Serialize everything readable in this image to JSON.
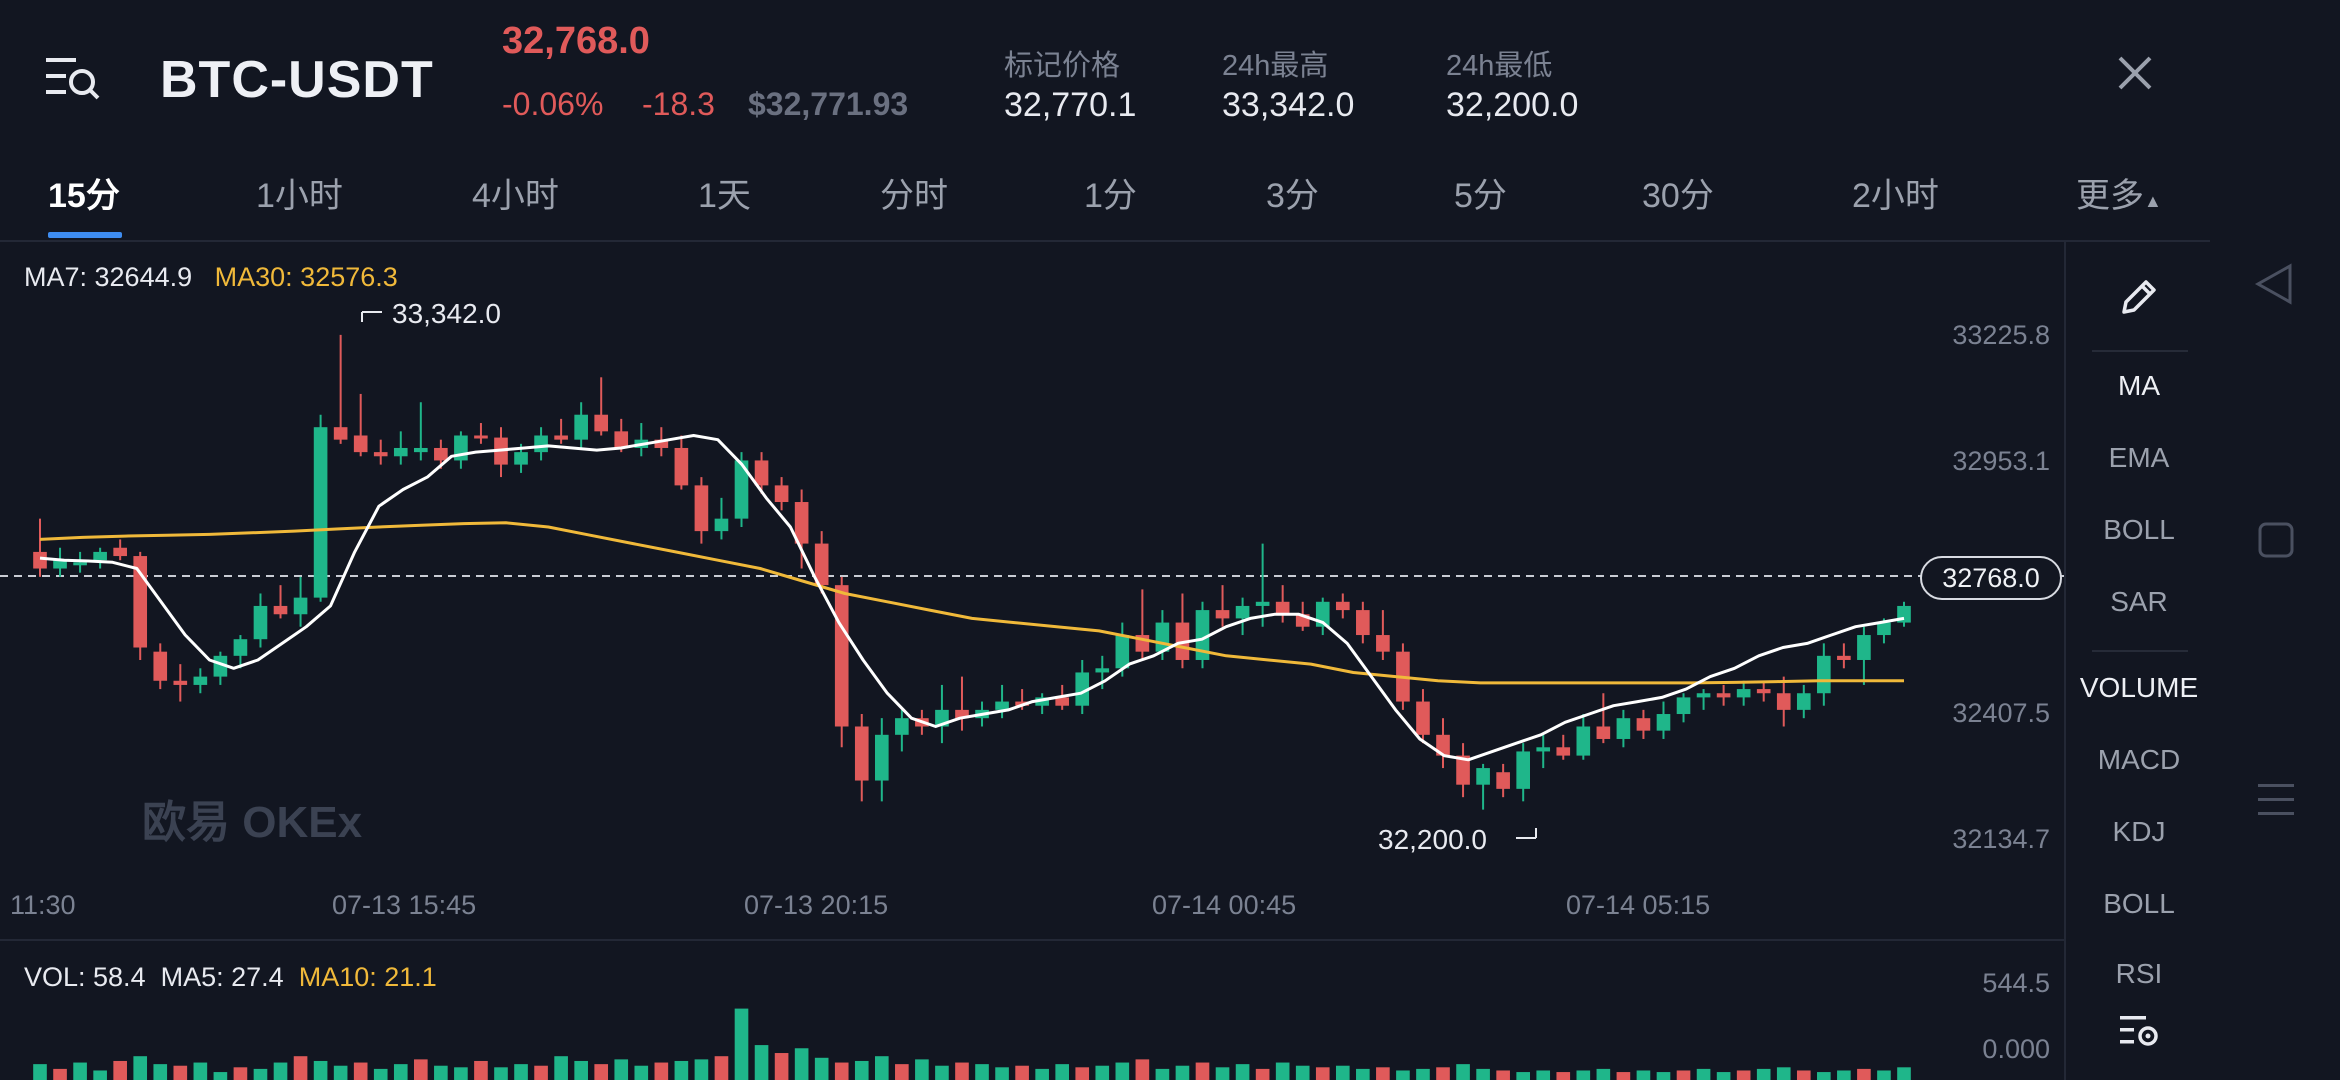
{
  "header": {
    "pair": "BTC-USDT",
    "last_price": "32,768.0",
    "change_pct": "-0.06%",
    "change_abs": "-18.3",
    "fiat_price": "$32,771.93",
    "stats": [
      {
        "label": "标记价格",
        "value": "32,770.1"
      },
      {
        "label": "24h最高",
        "value": "33,342.0"
      },
      {
        "label": "24h最低",
        "value": "32,200.0"
      }
    ]
  },
  "tabs": [
    "15分",
    "1小时",
    "4小时",
    "1天",
    "分时",
    "1分",
    "3分",
    "5分",
    "30分",
    "2小时",
    "更多"
  ],
  "active_tab": "15分",
  "ma_legend": {
    "ma7": "MA7: 32644.9",
    "ma30": "MA30: 32576.3"
  },
  "vol_legend": {
    "vol": "VOL: 58.4",
    "ma5": "MA5: 27.4",
    "ma10": "MA10: 21.1"
  },
  "watermark": "欧易 OKEx",
  "price_axis": [
    "33225.8",
    "32953.1",
    "32407.5",
    "32134.7"
  ],
  "time_axis": [
    "11:30",
    "07-13 15:45",
    "07-13 20:15",
    "07-14 00:45",
    "07-14 05:15"
  ],
  "high_marker": "33,342.0",
  "low_marker": "32,200.0",
  "current_price_badge": "32768.0",
  "vol_axis": [
    "544.5",
    "0.000"
  ],
  "indicators": [
    "MA",
    "EMA",
    "BOLL",
    "SAR",
    "VOLUME",
    "MACD",
    "KDJ",
    "BOLL",
    "RSI"
  ],
  "colors": {
    "up": "#1fb68a",
    "down": "#e05a5a",
    "ma_fast": "#ffffff",
    "ma_slow": "#f0b93a",
    "accent": "#3e8cf0",
    "background": "#121621"
  },
  "icons": [
    "menu-search-icon",
    "close-icon",
    "pencil-icon",
    "indicator-settings-icon",
    "back-triangle-icon",
    "home-square-icon",
    "menu-lines-icon"
  ],
  "chart_data": {
    "type": "candlestick",
    "ylim": [
      32050,
      33450
    ],
    "candles": [
      {
        "o": 32820,
        "h": 32900,
        "l": 32760,
        "c": 32780
      },
      {
        "o": 32780,
        "h": 32830,
        "l": 32760,
        "c": 32800
      },
      {
        "o": 32790,
        "h": 32820,
        "l": 32770,
        "c": 32795
      },
      {
        "o": 32800,
        "h": 32830,
        "l": 32780,
        "c": 32820
      },
      {
        "o": 32830,
        "h": 32850,
        "l": 32800,
        "c": 32810
      },
      {
        "o": 32810,
        "h": 32820,
        "l": 32560,
        "c": 32590
      },
      {
        "o": 32580,
        "h": 32600,
        "l": 32490,
        "c": 32510
      },
      {
        "o": 32510,
        "h": 32550,
        "l": 32460,
        "c": 32500
      },
      {
        "o": 32500,
        "h": 32540,
        "l": 32480,
        "c": 32520
      },
      {
        "o": 32520,
        "h": 32580,
        "l": 32500,
        "c": 32570
      },
      {
        "o": 32570,
        "h": 32620,
        "l": 32540,
        "c": 32610
      },
      {
        "o": 32610,
        "h": 32720,
        "l": 32590,
        "c": 32690
      },
      {
        "o": 32690,
        "h": 32740,
        "l": 32660,
        "c": 32670
      },
      {
        "o": 32670,
        "h": 32760,
        "l": 32640,
        "c": 32710
      },
      {
        "o": 32710,
        "h": 33150,
        "l": 32700,
        "c": 33120
      },
      {
        "o": 33120,
        "h": 33342,
        "l": 33080,
        "c": 33090
      },
      {
        "o": 33100,
        "h": 33200,
        "l": 33050,
        "c": 33060
      },
      {
        "o": 33060,
        "h": 33090,
        "l": 33030,
        "c": 33050
      },
      {
        "o": 33050,
        "h": 33110,
        "l": 33030,
        "c": 33070
      },
      {
        "o": 33060,
        "h": 33180,
        "l": 33040,
        "c": 33070
      },
      {
        "o": 33070,
        "h": 33090,
        "l": 33020,
        "c": 33040
      },
      {
        "o": 33040,
        "h": 33110,
        "l": 33020,
        "c": 33100
      },
      {
        "o": 33100,
        "h": 33130,
        "l": 33080,
        "c": 33095
      },
      {
        "o": 33095,
        "h": 33120,
        "l": 33000,
        "c": 33030
      },
      {
        "o": 33030,
        "h": 33080,
        "l": 33010,
        "c": 33060
      },
      {
        "o": 33060,
        "h": 33120,
        "l": 33040,
        "c": 33100
      },
      {
        "o": 33100,
        "h": 33140,
        "l": 33080,
        "c": 33090
      },
      {
        "o": 33090,
        "h": 33180,
        "l": 33070,
        "c": 33150
      },
      {
        "o": 33150,
        "h": 33240,
        "l": 33100,
        "c": 33110
      },
      {
        "o": 33110,
        "h": 33140,
        "l": 33060,
        "c": 33070
      },
      {
        "o": 33070,
        "h": 33130,
        "l": 33050,
        "c": 33090
      },
      {
        "o": 33090,
        "h": 33120,
        "l": 33050,
        "c": 33070
      },
      {
        "o": 33070,
        "h": 33100,
        "l": 32970,
        "c": 32980
      },
      {
        "o": 32980,
        "h": 33000,
        "l": 32840,
        "c": 32870
      },
      {
        "o": 32870,
        "h": 32950,
        "l": 32850,
        "c": 32900
      },
      {
        "o": 32900,
        "h": 33060,
        "l": 32880,
        "c": 33040
      },
      {
        "o": 33040,
        "h": 33060,
        "l": 32960,
        "c": 32980
      },
      {
        "o": 32980,
        "h": 33000,
        "l": 32920,
        "c": 32940
      },
      {
        "o": 32940,
        "h": 32970,
        "l": 32780,
        "c": 32840
      },
      {
        "o": 32840,
        "h": 32870,
        "l": 32720,
        "c": 32740
      },
      {
        "o": 32740,
        "h": 32760,
        "l": 32350,
        "c": 32400
      },
      {
        "o": 32400,
        "h": 32430,
        "l": 32220,
        "c": 32270
      },
      {
        "o": 32270,
        "h": 32420,
        "l": 32220,
        "c": 32380
      },
      {
        "o": 32380,
        "h": 32440,
        "l": 32340,
        "c": 32420
      },
      {
        "o": 32420,
        "h": 32440,
        "l": 32380,
        "c": 32400
      },
      {
        "o": 32400,
        "h": 32500,
        "l": 32360,
        "c": 32440
      },
      {
        "o": 32440,
        "h": 32520,
        "l": 32390,
        "c": 32420
      },
      {
        "o": 32420,
        "h": 32460,
        "l": 32400,
        "c": 32440
      },
      {
        "o": 32440,
        "h": 32500,
        "l": 32420,
        "c": 32460
      },
      {
        "o": 32460,
        "h": 32490,
        "l": 32440,
        "c": 32450
      },
      {
        "o": 32450,
        "h": 32480,
        "l": 32430,
        "c": 32470
      },
      {
        "o": 32470,
        "h": 32500,
        "l": 32440,
        "c": 32450
      },
      {
        "o": 32450,
        "h": 32560,
        "l": 32430,
        "c": 32530
      },
      {
        "o": 32530,
        "h": 32570,
        "l": 32490,
        "c": 32540
      },
      {
        "o": 32540,
        "h": 32650,
        "l": 32520,
        "c": 32620
      },
      {
        "o": 32620,
        "h": 32730,
        "l": 32560,
        "c": 32580
      },
      {
        "o": 32580,
        "h": 32680,
        "l": 32560,
        "c": 32650
      },
      {
        "o": 32650,
        "h": 32720,
        "l": 32540,
        "c": 32560
      },
      {
        "o": 32560,
        "h": 32700,
        "l": 32540,
        "c": 32680
      },
      {
        "o": 32680,
        "h": 32740,
        "l": 32640,
        "c": 32660
      },
      {
        "o": 32660,
        "h": 32710,
        "l": 32620,
        "c": 32690
      },
      {
        "o": 32690,
        "h": 32840,
        "l": 32640,
        "c": 32700
      },
      {
        "o": 32700,
        "h": 32740,
        "l": 32650,
        "c": 32670
      },
      {
        "o": 32670,
        "h": 32700,
        "l": 32630,
        "c": 32640
      },
      {
        "o": 32640,
        "h": 32710,
        "l": 32620,
        "c": 32700
      },
      {
        "o": 32700,
        "h": 32720,
        "l": 32660,
        "c": 32680
      },
      {
        "o": 32680,
        "h": 32700,
        "l": 32600,
        "c": 32620
      },
      {
        "o": 32620,
        "h": 32680,
        "l": 32560,
        "c": 32580
      },
      {
        "o": 32580,
        "h": 32600,
        "l": 32440,
        "c": 32460
      },
      {
        "o": 32460,
        "h": 32490,
        "l": 32360,
        "c": 32380
      },
      {
        "o": 32380,
        "h": 32420,
        "l": 32300,
        "c": 32330
      },
      {
        "o": 32330,
        "h": 32360,
        "l": 32230,
        "c": 32260
      },
      {
        "o": 32260,
        "h": 32310,
        "l": 32200,
        "c": 32300
      },
      {
        "o": 32290,
        "h": 32310,
        "l": 32230,
        "c": 32250
      },
      {
        "o": 32250,
        "h": 32360,
        "l": 32220,
        "c": 32340
      },
      {
        "o": 32340,
        "h": 32380,
        "l": 32300,
        "c": 32350
      },
      {
        "o": 32350,
        "h": 32380,
        "l": 32320,
        "c": 32330
      },
      {
        "o": 32330,
        "h": 32430,
        "l": 32320,
        "c": 32400
      },
      {
        "o": 32400,
        "h": 32480,
        "l": 32360,
        "c": 32370
      },
      {
        "o": 32370,
        "h": 32440,
        "l": 32350,
        "c": 32420
      },
      {
        "o": 32420,
        "h": 32440,
        "l": 32370,
        "c": 32390
      },
      {
        "o": 32390,
        "h": 32460,
        "l": 32370,
        "c": 32430
      },
      {
        "o": 32430,
        "h": 32480,
        "l": 32410,
        "c": 32470
      },
      {
        "o": 32470,
        "h": 32490,
        "l": 32440,
        "c": 32480
      },
      {
        "o": 32480,
        "h": 32500,
        "l": 32450,
        "c": 32470
      },
      {
        "o": 32470,
        "h": 32510,
        "l": 32450,
        "c": 32490
      },
      {
        "o": 32490,
        "h": 32510,
        "l": 32460,
        "c": 32480
      },
      {
        "o": 32480,
        "h": 32520,
        "l": 32400,
        "c": 32440
      },
      {
        "o": 32440,
        "h": 32500,
        "l": 32420,
        "c": 32480
      },
      {
        "o": 32480,
        "h": 32600,
        "l": 32450,
        "c": 32570
      },
      {
        "o": 32570,
        "h": 32600,
        "l": 32540,
        "c": 32560
      },
      {
        "o": 32560,
        "h": 32640,
        "l": 32500,
        "c": 32620
      },
      {
        "o": 32620,
        "h": 32660,
        "l": 32600,
        "c": 32650
      },
      {
        "o": 32650,
        "h": 32700,
        "l": 32640,
        "c": 32690
      }
    ],
    "ma7": [
      32805,
      32800,
      32798,
      32795,
      32780,
      32700,
      32620,
      32560,
      32540,
      32560,
      32600,
      32640,
      32690,
      32820,
      32930,
      32970,
      33000,
      33050,
      33060,
      33065,
      33070,
      33075,
      33070,
      33065,
      33070,
      33080,
      33090,
      33100,
      33090,
      33030,
      32950,
      32880,
      32760,
      32650,
      32560,
      32480,
      32420,
      32400,
      32420,
      32430,
      32440,
      32460,
      32470,
      32480,
      32510,
      32550,
      32570,
      32600,
      32610,
      32640,
      32660,
      32670,
      32670,
      32650,
      32600,
      32520,
      32440,
      32370,
      32330,
      32320,
      32340,
      32360,
      32380,
      32410,
      32430,
      32450,
      32460,
      32470,
      32490,
      32520,
      32540,
      32570,
      32590,
      32600,
      32620,
      32640,
      32650,
      32660
    ],
    "ma30": [
      32850,
      32855,
      32858,
      32860,
      32862,
      32866,
      32870,
      32875,
      32880,
      32884,
      32888,
      32890,
      32880,
      32860,
      32840,
      32820,
      32800,
      32780,
      32750,
      32720,
      32700,
      32680,
      32660,
      32650,
      32640,
      32630,
      32610,
      32590,
      32570,
      32560,
      32550,
      32530,
      32520,
      32510,
      32505,
      32505,
      32505,
      32505,
      32505,
      32505,
      32506,
      32508,
      32510,
      32510,
      32510
    ],
    "volumes": [
      20,
      14,
      22,
      12,
      24,
      30,
      20,
      18,
      22,
      10,
      16,
      14,
      22,
      30,
      24,
      18,
      22,
      14,
      20,
      26,
      18,
      16,
      24,
      16,
      20,
      18,
      30,
      24,
      20,
      26,
      18,
      22,
      24,
      26,
      30,
      90,
      44,
      34,
      40,
      28,
      22,
      24,
      30,
      20,
      26,
      18,
      22,
      20,
      16,
      18,
      14,
      20,
      16,
      18,
      22,
      26,
      14,
      18,
      22,
      16,
      20,
      14,
      22,
      18,
      16,
      18,
      14,
      16,
      12,
      14,
      16,
      20,
      14,
      12,
      10,
      12,
      10,
      12,
      14,
      10,
      12,
      10,
      12,
      14,
      10,
      12,
      14,
      16,
      12,
      10,
      12,
      14,
      12,
      16
    ]
  }
}
